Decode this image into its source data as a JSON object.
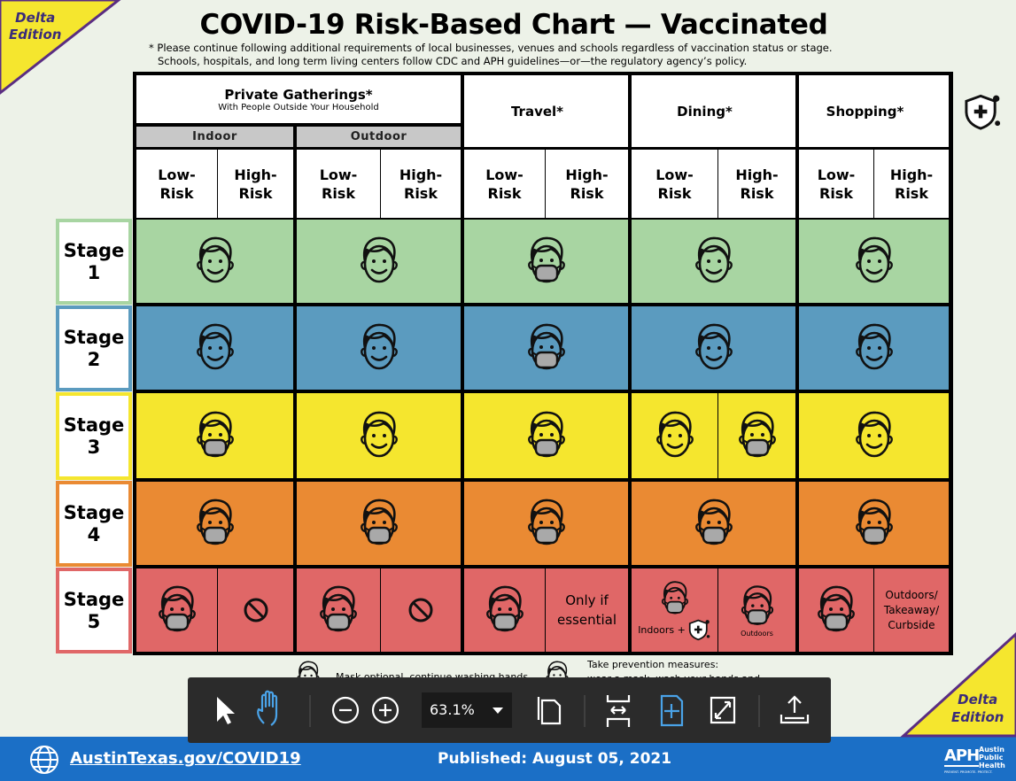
{
  "badge": "Delta Edition",
  "title": "COVID-19 Risk-Based Chart — Vaccinated",
  "notes": [
    "* Please continue following additional requirements of local businesses, venues and schools regardless of vaccination status or stage.",
    "Schools, hospitals, and long term living centers follow CDC and APH guidelines—or—the regulatory agency’s policy."
  ],
  "table": {
    "groups": [
      {
        "title": "Private Gatherings*",
        "subtitle": "With People Outside Your Household",
        "parts": [
          "Indoor",
          "Outdoor"
        ]
      },
      {
        "title": "Travel*"
      },
      {
        "title": "Dining*"
      },
      {
        "title": "Shopping*"
      }
    ],
    "risk": [
      "Low-Risk",
      "High-Risk"
    ],
    "rows": [
      {
        "stage": "Stage 1",
        "color": "#a8d5a2",
        "cells": [
          [
            {
              "icon": "open"
            }
          ],
          [
            {
              "icon": "open"
            }
          ],
          [
            {
              "icon": "mask"
            }
          ],
          [
            {
              "icon": "open"
            }
          ],
          [
            {
              "icon": "open"
            }
          ]
        ]
      },
      {
        "stage": "Stage 2",
        "color": "#5b9bbf",
        "cells": [
          [
            {
              "icon": "open"
            }
          ],
          [
            {
              "icon": "open"
            }
          ],
          [
            {
              "icon": "mask"
            }
          ],
          [
            {
              "icon": "open"
            }
          ],
          [
            {
              "icon": "open"
            }
          ]
        ]
      },
      {
        "stage": "Stage 3",
        "color": "#f5e62e",
        "cells": [
          [
            {
              "icon": "mask"
            }
          ],
          [
            {
              "icon": "open"
            }
          ],
          [
            {
              "icon": "mask"
            }
          ],
          [
            {
              "icon": "open"
            },
            {
              "icon": "mask"
            }
          ],
          [
            {
              "icon": "open"
            }
          ]
        ]
      },
      {
        "stage": "Stage 4",
        "color": "#ea8a33",
        "cells": [
          [
            {
              "icon": "mask"
            }
          ],
          [
            {
              "icon": "mask"
            }
          ],
          [
            {
              "icon": "mask"
            }
          ],
          [
            {
              "icon": "mask"
            }
          ],
          [
            {
              "icon": "mask"
            }
          ]
        ]
      },
      {
        "stage": "Stage 5",
        "color": "#e06767",
        "cells": [
          [
            {
              "icon": "mask"
            },
            {
              "icon": "no"
            }
          ],
          [
            {
              "icon": "mask"
            },
            {
              "icon": "no"
            }
          ],
          [
            {
              "icon": "mask"
            },
            {
              "text": "Only if essential"
            }
          ],
          [
            {
              "icon": "mask",
              "text": "Indoors +",
              "shield": true
            },
            {
              "icon": "mask",
              "small": "Outdoors"
            }
          ],
          [
            {
              "icon": "mask"
            },
            {
              "text": "Outdoors/ Takeaway/ Curbside"
            }
          ]
        ]
      }
    ]
  },
  "legend": [
    {
      "icon": "open",
      "lines": [
        "Mask optional, continue washing hands"
      ]
    },
    {
      "icon": "mask",
      "lines": [
        "Take prevention measures:",
        "wear a mask, wash your hands and"
      ]
    }
  ],
  "toolbar": {
    "zoom": "63.1%"
  },
  "footer": {
    "link": "AustinTexas.gov/COVID19",
    "published": "Published: August 05, 2021",
    "logo": "APH",
    "org": "Austin Public Health",
    "tagline": "PREVENT. PROMOTE. PROTECT."
  }
}
